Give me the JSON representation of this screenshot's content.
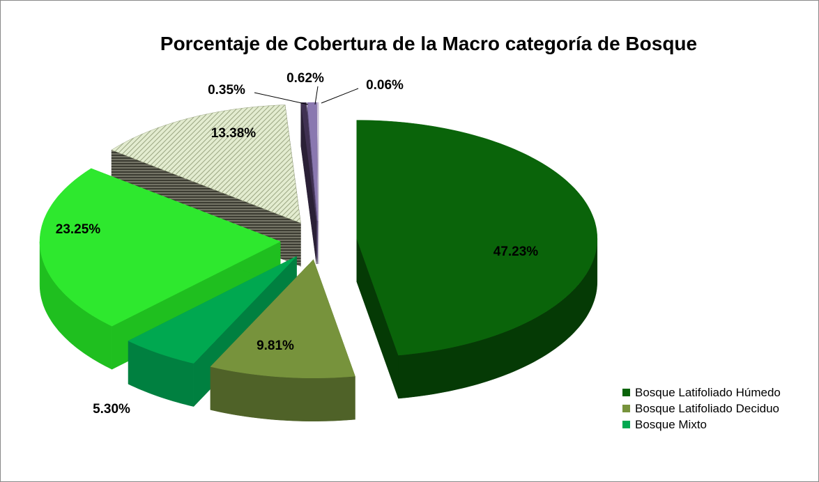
{
  "chart_data": {
    "type": "pie",
    "title": "Porcentaje de Cobertura de la  Macro categoría  de Bosque",
    "categories": [
      "Bosque Latifoliado Húmedo",
      "Bosque Latifoliado Deciduo",
      "Bosque Mixto",
      null,
      null,
      null,
      null,
      null
    ],
    "values": [
      47.23,
      9.81,
      5.3,
      23.25,
      13.38,
      0.35,
      0.62,
      0.06
    ],
    "value_labels": [
      "47.23%",
      "9.81%",
      "5.30%",
      "23.25%",
      "13.38%",
      "0.35%",
      "0.62%",
      "0.06%"
    ],
    "colors": [
      "#0a640a",
      "#77933c",
      "#00a850",
      "#2ee82e",
      "#d7e4bd",
      "#403152",
      "#8a78b0",
      "#ccc0da"
    ],
    "side_colors": [
      "#053a05",
      "#4f6228",
      "#008040",
      "#1fbf1f",
      "#5a5a4a",
      "#2a2036",
      "#5c4f7a",
      "#9a90a8"
    ],
    "legend": "right"
  }
}
